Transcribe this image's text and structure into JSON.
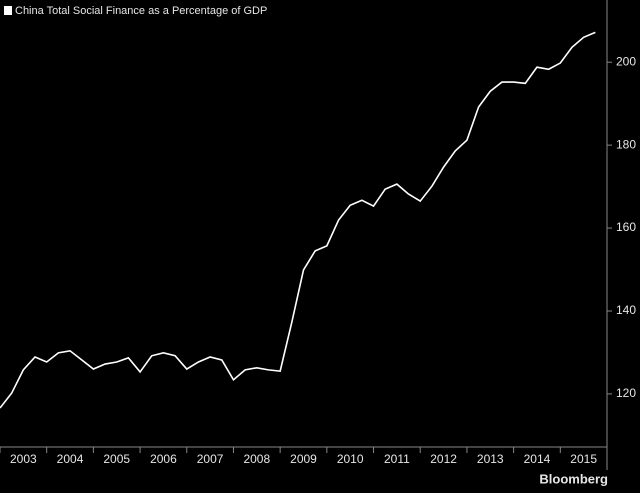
{
  "chart_data": {
    "type": "line",
    "title": "China Total Social Finance as a Percentage of GDP",
    "source": "Bloomberg",
    "x": [
      2003,
      2003.25,
      2003.5,
      2003.75,
      2004,
      2004.25,
      2004.5,
      2004.75,
      2005,
      2005.25,
      2005.5,
      2005.75,
      2006,
      2006.25,
      2006.5,
      2006.75,
      2007,
      2007.25,
      2007.5,
      2007.75,
      2008,
      2008.25,
      2008.5,
      2008.75,
      2009,
      2009.25,
      2009.5,
      2009.75,
      2010,
      2010.25,
      2010.5,
      2010.75,
      2011,
      2011.25,
      2011.5,
      2011.75,
      2012,
      2012.25,
      2012.5,
      2012.75,
      2013,
      2013.25,
      2013.5,
      2013.75,
      2014,
      2014.25,
      2014.5,
      2014.75,
      2015,
      2015.25,
      2015.5,
      2015.75
    ],
    "series": [
      {
        "name": "China Total Social Finance as a Percentage of GDP",
        "color": "#ffffff",
        "values": [
          116.6,
          120.2,
          125.8,
          128.9,
          127.7,
          129.9,
          130.4,
          128.2,
          126.0,
          127.2,
          127.7,
          128.7,
          125.3,
          129.2,
          129.9,
          129.2,
          126.0,
          127.7,
          128.9,
          128.2,
          123.4,
          125.8,
          126.3,
          125.8,
          125.5,
          137.3,
          149.9,
          154.5,
          155.7,
          161.9,
          165.5,
          166.7,
          165.3,
          169.4,
          170.6,
          168.2,
          166.5,
          170.1,
          174.7,
          178.6,
          181.2,
          189.2,
          193.0,
          195.2,
          195.2,
          194.9,
          198.8,
          198.3,
          199.8,
          203.6,
          206.0,
          207.2
        ]
      }
    ],
    "xlim": [
      2003,
      2016
    ],
    "xticks": [
      2003,
      2004,
      2005,
      2006,
      2007,
      2008,
      2009,
      2010,
      2011,
      2012,
      2013,
      2014,
      2015
    ],
    "ylim": [
      107.2,
      215
    ],
    "yticks": [
      120,
      140,
      160,
      180,
      200
    ]
  }
}
